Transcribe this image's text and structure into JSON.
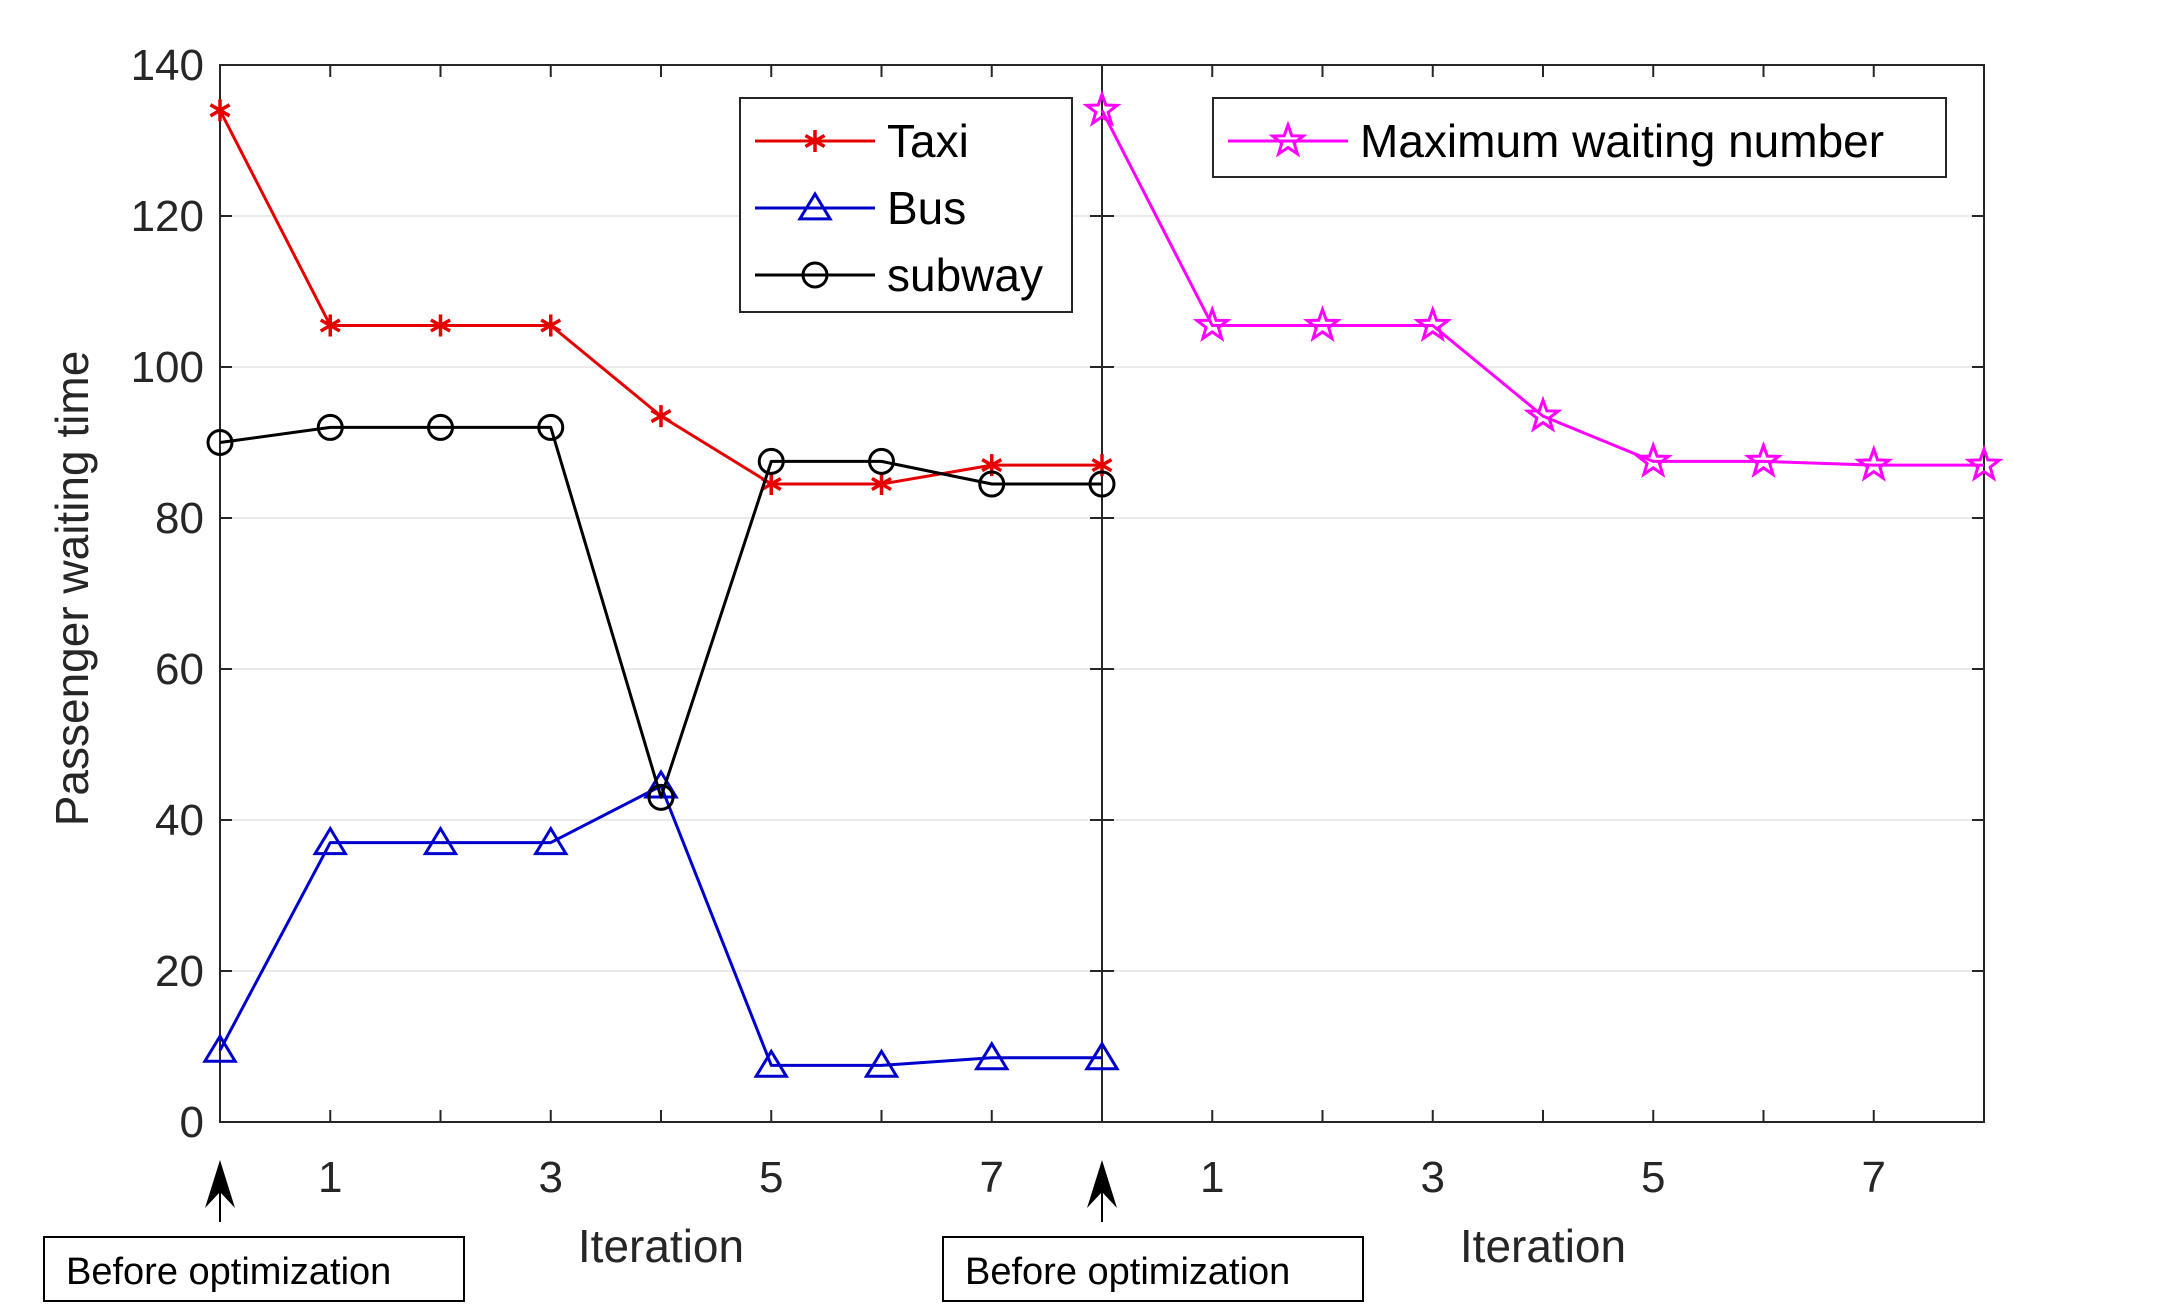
{
  "chart_data": [
    {
      "type": "line",
      "panel": "left",
      "title": "",
      "xlabel": "Iteration",
      "ylabel": "Passenger waiting time",
      "xlim": [
        0,
        8
      ],
      "ylim": [
        0,
        140
      ],
      "grid": "horizontal",
      "x": [
        0,
        1,
        2,
        3,
        4,
        5,
        6,
        7,
        8
      ],
      "x_ticks": [
        "1",
        "3",
        "5",
        "7"
      ],
      "x_tick_values": [
        1,
        3,
        5,
        7
      ],
      "y_ticks": [
        "0",
        "20",
        "40",
        "60",
        "80",
        "100",
        "120",
        "140"
      ],
      "y_tick_values": [
        0,
        20,
        40,
        60,
        80,
        100,
        120,
        140
      ],
      "legend_position": "top-right",
      "series": [
        {
          "name": "Taxi",
          "color": "#e60000",
          "marker": "asterisk",
          "values": [
            134,
            105.5,
            105.5,
            105.5,
            93.5,
            84.5,
            84.5,
            87,
            87
          ]
        },
        {
          "name": "Bus",
          "color": "#0000cc",
          "marker": "triangle",
          "values": [
            9.5,
            37,
            37,
            37,
            44.5,
            7.5,
            7.5,
            8.5,
            8.5
          ]
        },
        {
          "name": "subway",
          "color": "#000000",
          "marker": "circle",
          "values": [
            90,
            92,
            92,
            92,
            43,
            87.5,
            87.5,
            84.5,
            84.5
          ]
        }
      ],
      "annotation": {
        "text": "Before optimization",
        "points_to_x": 0
      }
    },
    {
      "type": "line",
      "panel": "right",
      "title": "",
      "xlabel": "Iteration",
      "ylabel": "",
      "xlim": [
        0,
        8
      ],
      "ylim": [
        0,
        140
      ],
      "grid": "horizontal",
      "x": [
        0,
        1,
        2,
        3,
        4,
        5,
        6,
        7,
        8
      ],
      "x_ticks": [
        "1",
        "3",
        "5",
        "7"
      ],
      "x_tick_values": [
        1,
        3,
        5,
        7
      ],
      "legend_position": "top-right",
      "series": [
        {
          "name": "Maximum waiting number",
          "color": "#ff00ff",
          "marker": "star",
          "values": [
            134,
            105.5,
            105.5,
            105.5,
            93.5,
            87.5,
            87.5,
            87,
            87
          ]
        }
      ],
      "annotation": {
        "text": "Before optimization",
        "points_to_x": 0
      }
    }
  ]
}
